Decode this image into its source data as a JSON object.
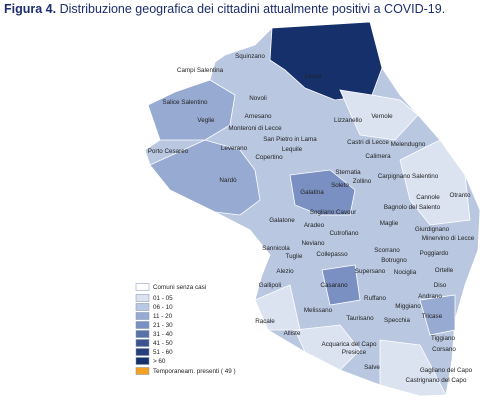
{
  "title": {
    "label": "Figura 4.",
    "text": "Distribuzione  geografica dei cittadini attualmente positivi a COVID-19."
  },
  "places": [
    "Squinzano",
    "Campi Salentina",
    "Lecce",
    "Salice Salentino",
    "Novoli",
    "Veglie",
    "Arnesano",
    "Lizzanello",
    "Vernole",
    "Monteroni di Lecce",
    "Leverano",
    "San Pietro in Lama",
    "Lequile",
    "Castri di Lecce",
    "Copertino",
    "Porto Cesareo",
    "Calimera",
    "Melendugno",
    "Sternatia",
    "Carpignano Salentino",
    "Soleto",
    "Zollino",
    "Nardò",
    "Galatina",
    "Cannole",
    "Otranto",
    "Bagnolo del Salento",
    "Sogliano Cavour",
    "Galatone",
    "Aradeo",
    "Cutrofiano",
    "Maglie",
    "Giurdignano",
    "Minervino di Lecce",
    "Neviano",
    "Sannicola",
    "Tuglie",
    "Collepasso",
    "Scorrano",
    "Botrugno",
    "Poggiardo",
    "Supersano",
    "Nociglia",
    "Ortelle",
    "Alezio",
    "Gallipoli",
    "Casarano",
    "Diso",
    "Andrano",
    "Ruffano",
    "Miggiano",
    "Melissano",
    "Racale",
    "Taurisano",
    "Specchia",
    "Tricase",
    "Alliste",
    "Acquarica del Capo",
    "Tiggiano",
    "Corsano",
    "Presicce",
    "Salve",
    "Gagliano del Capo",
    "Castrignano del Capo"
  ],
  "legend": [
    {
      "label": "Comuni senza casi",
      "color": "#ffffff"
    },
    {
      "label": "01 - 05",
      "color": "#dbe3f1"
    },
    {
      "label": "06 - 10",
      "color": "#b9c7e1"
    },
    {
      "label": "11 - 20",
      "color": "#97aad2"
    },
    {
      "label": "21 - 30",
      "color": "#7a90c2"
    },
    {
      "label": "31 - 40",
      "color": "#5a70a8"
    },
    {
      "label": "41 - 50",
      "color": "#3c5390"
    },
    {
      "label": "51 - 60",
      "color": "#263f7a"
    },
    {
      "label": "> 60",
      "color": "#15306a"
    },
    {
      "label": "Temporaneam. presenti ( 49 )",
      "color": "#f5a020"
    }
  ]
}
